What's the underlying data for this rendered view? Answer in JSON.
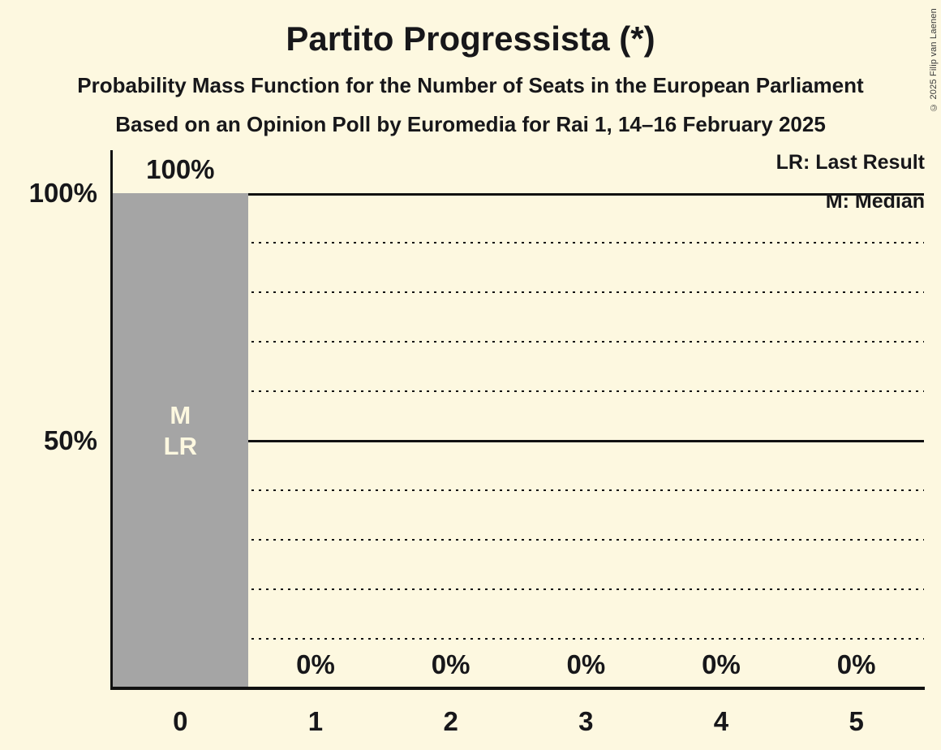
{
  "page": {
    "background_color": "#FDF8E0",
    "text_color": "#17171A",
    "copyright": "© 2025 Filip van Laenen"
  },
  "chart_data": {
    "type": "bar",
    "title": "Partito Progressista (*)",
    "subtitle": "Probability Mass Function for the Number of Seats in the European Parliament",
    "subsubtitle": "Based on an Opinion Poll by Euromedia for Rai 1, 14–16 February 2025",
    "xlabel": "",
    "ylabel": "",
    "categories": [
      "0",
      "1",
      "2",
      "3",
      "4",
      "5"
    ],
    "values": [
      100,
      0,
      0,
      0,
      0,
      0
    ],
    "bar_labels": [
      "100%",
      "0%",
      "0%",
      "0%",
      "0%",
      "0%"
    ],
    "bar_color": "#A5A5A5",
    "bar_label_color": "#FDF8E0",
    "ylim": [
      0,
      100
    ],
    "y_ticks": [
      {
        "label": "100%",
        "value": 100
      },
      {
        "label": "50%",
        "value": 50
      }
    ],
    "gridlines": {
      "dotted_values": [
        10,
        20,
        30,
        40,
        60,
        70,
        80,
        90
      ],
      "solid_values": [
        50,
        100
      ],
      "grid_color": "#111111"
    },
    "legend": [
      {
        "abbr": "LR",
        "label": "LR: Last Result"
      },
      {
        "abbr": "M",
        "label": "M: Median"
      }
    ],
    "annotations": [
      {
        "category": "0",
        "lines": [
          "M",
          "LR"
        ]
      }
    ],
    "median_seats": 0,
    "last_result_seats": 0
  }
}
